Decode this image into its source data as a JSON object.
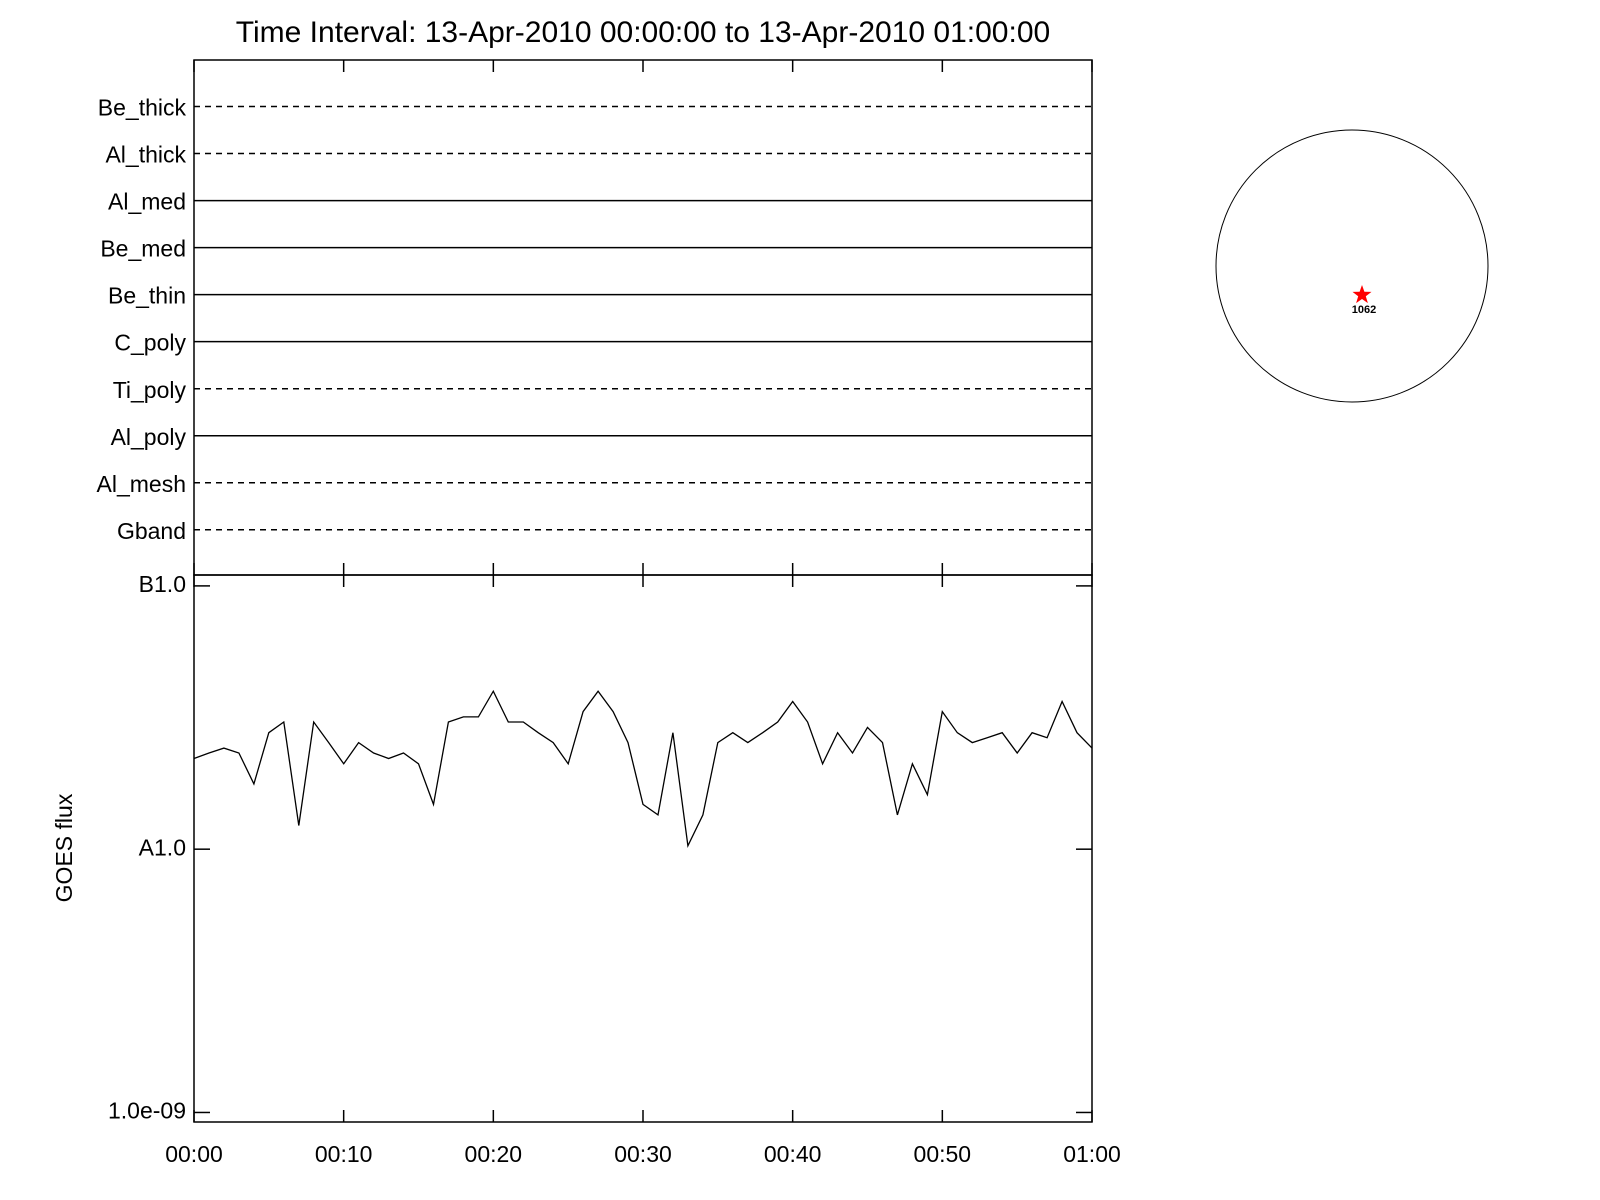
{
  "chart_data": [
    {
      "type": "timeline",
      "title": "Time Interval: 13-Apr-2010 00:00:00 to 13-Apr-2010 01:00:00",
      "channels": [
        "Be_thick",
        "Al_thick",
        "Al_med",
        "Be_med",
        "Be_thin",
        "C_poly",
        "Ti_poly",
        "Al_poly",
        "Al_mesh",
        "Gband"
      ],
      "styles": [
        "dashed",
        "dashed",
        "solid",
        "solid",
        "solid",
        "solid",
        "dashed",
        "solid",
        "dashed",
        "dashed"
      ]
    },
    {
      "type": "line",
      "ylabel": "GOES flux",
      "log_y": true,
      "color": "#000000",
      "x": [
        0,
        1,
        2,
        3,
        4,
        5,
        6,
        7,
        8,
        9,
        10,
        11,
        12,
        13,
        14,
        15,
        16,
        17,
        18,
        19,
        20,
        21,
        22,
        23,
        24,
        25,
        26,
        27,
        28,
        29,
        30,
        31,
        32,
        33,
        34,
        35,
        36,
        37,
        38,
        39,
        40,
        41,
        42,
        43,
        44,
        45,
        46,
        47,
        48,
        49,
        50,
        51,
        52,
        53,
        54,
        55,
        56,
        57,
        58,
        59,
        60
      ],
      "values": [
        2.21e-08,
        2.32e-08,
        2.42e-08,
        2.32e-08,
        1.77e-08,
        2.77e-08,
        3.04e-08,
        1.23e-08,
        3.04e-08,
        2.54e-08,
        2.11e-08,
        2.54e-08,
        2.32e-08,
        2.21e-08,
        2.32e-08,
        2.11e-08,
        1.48e-08,
        3.04e-08,
        3.18e-08,
        3.18e-08,
        3.98e-08,
        3.04e-08,
        3.04e-08,
        2.77e-08,
        2.54e-08,
        2.11e-08,
        3.33e-08,
        3.98e-08,
        3.33e-08,
        2.54e-08,
        1.48e-08,
        1.35e-08,
        2.77e-08,
        1.03e-08,
        1.35e-08,
        2.54e-08,
        2.77e-08,
        2.54e-08,
        2.77e-08,
        3.04e-08,
        3.64e-08,
        3.04e-08,
        2.11e-08,
        2.77e-08,
        2.32e-08,
        2.9e-08,
        2.54e-08,
        1.35e-08,
        2.11e-08,
        1.61e-08,
        3.33e-08,
        2.77e-08,
        2.54e-08,
        2.65e-08,
        2.77e-08,
        2.32e-08,
        2.77e-08,
        2.65e-08,
        3.64e-08,
        2.77e-08,
        2.42e-08
      ],
      "xlim": [
        0,
        60
      ],
      "xticks": [
        {
          "value": 0,
          "label": "00:00"
        },
        {
          "value": 10,
          "label": "00:10"
        },
        {
          "value": 20,
          "label": "00:20"
        },
        {
          "value": 30,
          "label": "00:30"
        },
        {
          "value": 40,
          "label": "00:40"
        },
        {
          "value": 50,
          "label": "00:50"
        },
        {
          "value": 60,
          "label": "01:00"
        }
      ],
      "ylim": [
        9.2e-10,
        1.1e-07
      ],
      "yticks": [
        {
          "value": 1e-09,
          "label": "1.0e-09"
        },
        {
          "value": 1e-08,
          "label": "A1.0"
        },
        {
          "value": 1e-07,
          "label": "B1.0"
        }
      ]
    },
    {
      "type": "disk",
      "label": "1062",
      "marker_color": "#ff0000"
    }
  ]
}
